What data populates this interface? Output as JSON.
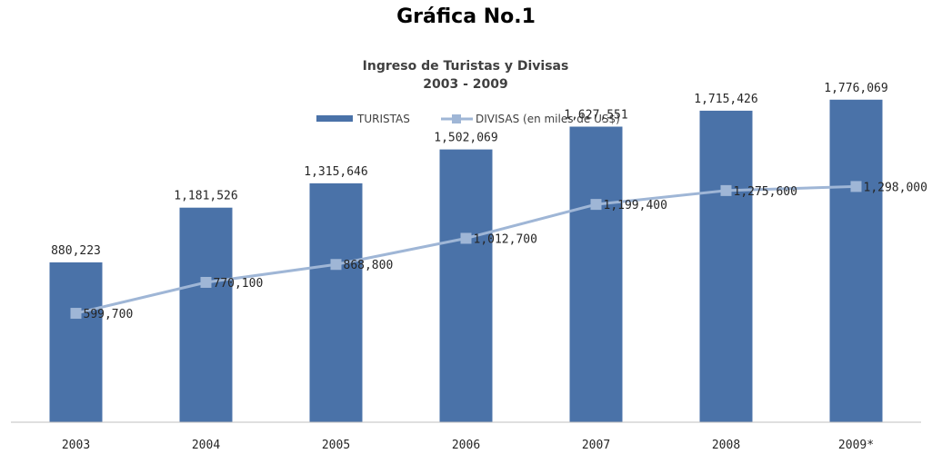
{
  "page": {
    "heading": "Gráfica No.1"
  },
  "chart_data": {
    "type": "bar",
    "title": "Ingreso de Turistas y Divisas",
    "subtitle": "2003 - 2009",
    "categories": [
      "2003",
      "2004",
      "2005",
      "2006",
      "2007",
      "2008",
      "2009*"
    ],
    "series": [
      {
        "name": "TURISTAS",
        "type": "bar",
        "color": "#4a72a8",
        "values": [
          880223,
          1181526,
          1315646,
          1502069,
          1627551,
          1715426,
          1776069
        ],
        "labels": [
          "880,223",
          "1,181,526",
          "1,315,646",
          "1,502,069",
          "1,627,551",
          "1,715,426",
          "1,776,069"
        ]
      },
      {
        "name": "DIVISAS (en miles de US$)",
        "type": "line",
        "color": "#9fb6d6",
        "values": [
          599700,
          770100,
          868800,
          1012700,
          1199400,
          1275600,
          1298000
        ],
        "labels": [
          "599,700",
          "770,100",
          "868,800",
          "1,012,700",
          "1,199,400",
          "1,275,600",
          "1,298,000"
        ]
      }
    ],
    "legend_position": "top",
    "grid": false,
    "ylim": [
      0,
      2000000
    ]
  }
}
